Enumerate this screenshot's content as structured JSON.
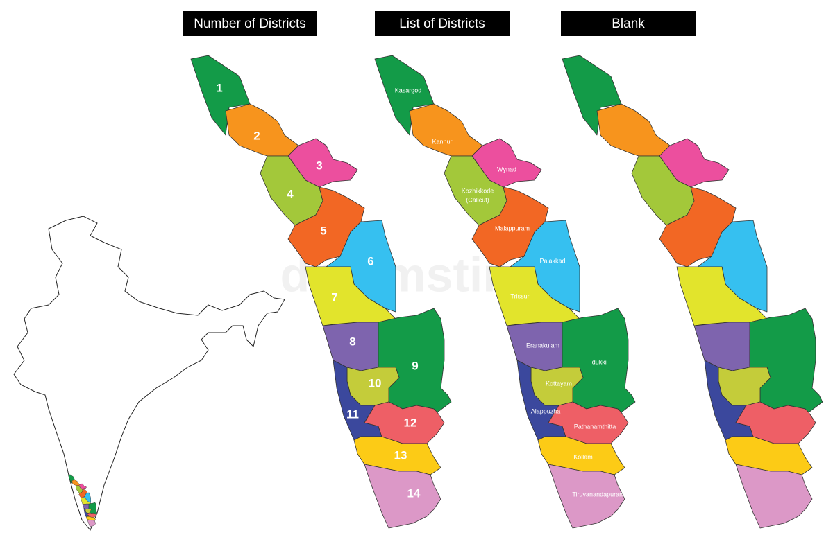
{
  "headers": [
    "Number of Districts",
    "List of Districts",
    "Blank"
  ],
  "watermark": "dreamstime",
  "districts": [
    {
      "number": "1",
      "name": [
        "Kasargod"
      ],
      "color": "#139b48"
    },
    {
      "number": "2",
      "name": [
        "Kannur"
      ],
      "color": "#f7941d"
    },
    {
      "number": "3",
      "name": [
        "Wynad"
      ],
      "color": "#ec4f9e"
    },
    {
      "number": "4",
      "name": [
        "Kozhikkode",
        "(Calicut)"
      ],
      "color": "#a3c83a"
    },
    {
      "number": "5",
      "name": [
        "Malappuram"
      ],
      "color": "#f26724"
    },
    {
      "number": "6",
      "name": [
        "Palakkad"
      ],
      "color": "#36c0f0"
    },
    {
      "number": "7",
      "name": [
        "Trissur"
      ],
      "color": "#e2e42c"
    },
    {
      "number": "8",
      "name": [
        "Eranakulam"
      ],
      "color": "#7e64ae"
    },
    {
      "number": "9",
      "name": [
        "Idukki"
      ],
      "color": "#139b48"
    },
    {
      "number": "10",
      "name": [
        "Kottayam"
      ],
      "color": "#c4cc3a"
    },
    {
      "number": "11",
      "name": [
        "Alappuzha"
      ],
      "color": "#3b489d"
    },
    {
      "number": "12",
      "name": [
        "Pathanamthitta"
      ],
      "color": "#ee5f66"
    },
    {
      "number": "13",
      "name": [
        "Kollam"
      ],
      "color": "#fccb16"
    },
    {
      "number": "14",
      "name": [
        "Tiruvanandapuram"
      ],
      "color": "#dc98c7"
    }
  ]
}
